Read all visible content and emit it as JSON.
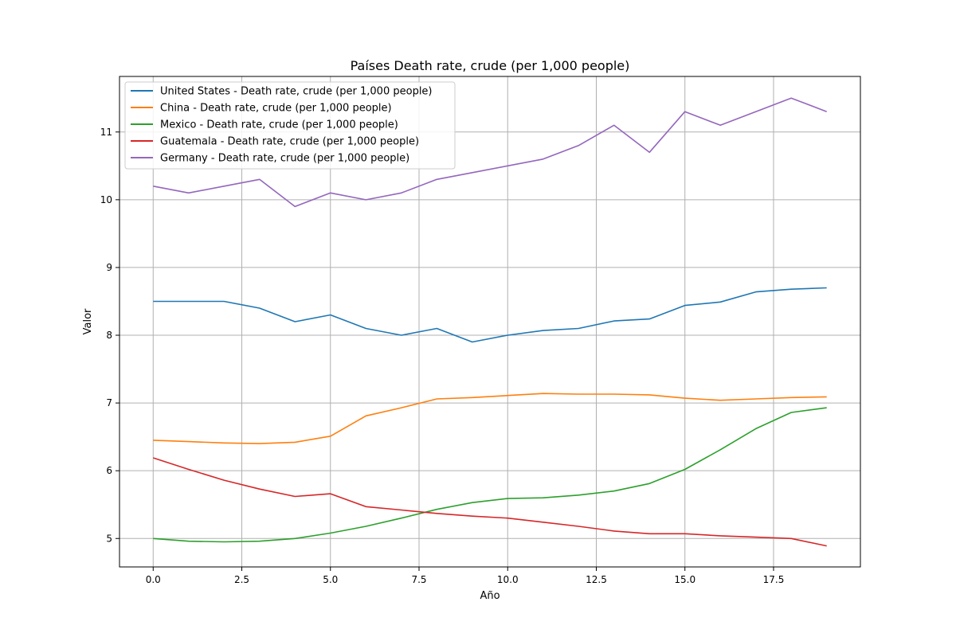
{
  "chart_data": {
    "type": "line",
    "title": "Países Death rate, crude (per 1,000 people)",
    "xlabel": "Año",
    "ylabel": "Valor",
    "x": [
      0,
      1,
      2,
      3,
      4,
      5,
      6,
      7,
      8,
      9,
      10,
      11,
      12,
      13,
      14,
      15,
      16,
      17,
      18,
      19
    ],
    "xlim": [
      -0.95,
      19.95
    ],
    "ylim": [
      4.58,
      11.82
    ],
    "xticks": [
      0.0,
      2.5,
      5.0,
      7.5,
      10.0,
      12.5,
      15.0,
      17.5
    ],
    "xtick_labels": [
      "0.0",
      "2.5",
      "5.0",
      "7.5",
      "10.0",
      "12.5",
      "15.0",
      "17.5"
    ],
    "yticks": [
      5,
      6,
      7,
      8,
      9,
      10,
      11
    ],
    "ytick_labels": [
      "5",
      "6",
      "7",
      "8",
      "9",
      "10",
      "11"
    ],
    "grid": true,
    "legend_position": "top-left",
    "series": [
      {
        "name": "United States - Death rate, crude (per 1,000 people)",
        "color": "#1f77b4",
        "values": [
          8.5,
          8.5,
          8.5,
          8.4,
          8.2,
          8.3,
          8.1,
          8.0,
          8.1,
          7.9,
          8.0,
          8.07,
          8.1,
          8.21,
          8.24,
          8.44,
          8.49,
          8.64,
          8.68,
          8.7
        ]
      },
      {
        "name": "China - Death rate, crude (per 1,000 people)",
        "color": "#ff7f0e",
        "values": [
          6.45,
          6.43,
          6.41,
          6.4,
          6.42,
          6.51,
          6.81,
          6.93,
          7.06,
          7.08,
          7.11,
          7.14,
          7.13,
          7.13,
          7.12,
          7.07,
          7.04,
          7.06,
          7.08,
          7.09
        ]
      },
      {
        "name": "Mexico - Death rate, crude (per 1,000 people)",
        "color": "#2ca02c",
        "values": [
          5.0,
          4.96,
          4.95,
          4.96,
          5.0,
          5.08,
          5.18,
          5.3,
          5.43,
          5.53,
          5.59,
          5.6,
          5.64,
          5.7,
          5.81,
          6.02,
          6.31,
          6.62,
          6.86,
          6.93
        ]
      },
      {
        "name": "Guatemala - Death rate, crude (per 1,000 people)",
        "color": "#d62728",
        "values": [
          6.19,
          6.02,
          5.86,
          5.73,
          5.62,
          5.66,
          5.47,
          5.42,
          5.37,
          5.33,
          5.3,
          5.24,
          5.18,
          5.11,
          5.07,
          5.07,
          5.04,
          5.02,
          5.0,
          4.89
        ]
      },
      {
        "name": "Germany - Death rate, crude (per 1,000 people)",
        "color": "#9467bd",
        "values": [
          10.2,
          10.1,
          10.2,
          10.3,
          9.9,
          10.1,
          10.0,
          10.1,
          10.3,
          10.4,
          10.5,
          10.6,
          10.8,
          11.1,
          10.7,
          11.3,
          11.1,
          11.3,
          11.5,
          11.3
        ]
      }
    ]
  }
}
